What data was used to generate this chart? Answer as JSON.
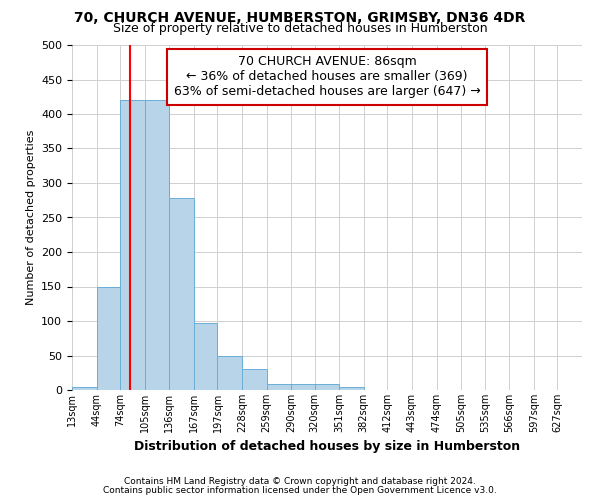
{
  "title1": "70, CHURCH AVENUE, HUMBERSTON, GRIMSBY, DN36 4DR",
  "title2": "Size of property relative to detached houses in Humberston",
  "xlabel": "Distribution of detached houses by size in Humberston",
  "ylabel": "Number of detached properties",
  "footnote1": "Contains HM Land Registry data © Crown copyright and database right 2024.",
  "footnote2": "Contains public sector information licensed under the Open Government Licence v3.0.",
  "bin_labels": [
    "13sqm",
    "44sqm",
    "74sqm",
    "105sqm",
    "136sqm",
    "167sqm",
    "197sqm",
    "228sqm",
    "259sqm",
    "290sqm",
    "320sqm",
    "351sqm",
    "382sqm",
    "412sqm",
    "443sqm",
    "474sqm",
    "505sqm",
    "535sqm",
    "566sqm",
    "597sqm",
    "627sqm"
  ],
  "bar_values": [
    5,
    150,
    420,
    420,
    278,
    97,
    49,
    30,
    8,
    9,
    8,
    5,
    0,
    0,
    0,
    0,
    0,
    0,
    0,
    0,
    0
  ],
  "ylim": [
    0,
    500
  ],
  "yticks": [
    0,
    50,
    100,
    150,
    200,
    250,
    300,
    350,
    400,
    450,
    500
  ],
  "bar_color": "#b8d4e8",
  "bar_edge_color": "#6aaed6",
  "property_size": 86,
  "annotation_text": "70 CHURCH AVENUE: 86sqm\n← 36% of detached houses are smaller (369)\n63% of semi-detached houses are larger (647) →",
  "annotation_box_color": "#ffffff",
  "annotation_border_color": "#cc0000",
  "grid_color": "#d0d0d0",
  "background_color": "#ffffff",
  "bin_edges": [
    13,
    44,
    74,
    105,
    136,
    167,
    197,
    228,
    259,
    290,
    320,
    351,
    382,
    412,
    443,
    474,
    505,
    535,
    566,
    597,
    627,
    658
  ]
}
